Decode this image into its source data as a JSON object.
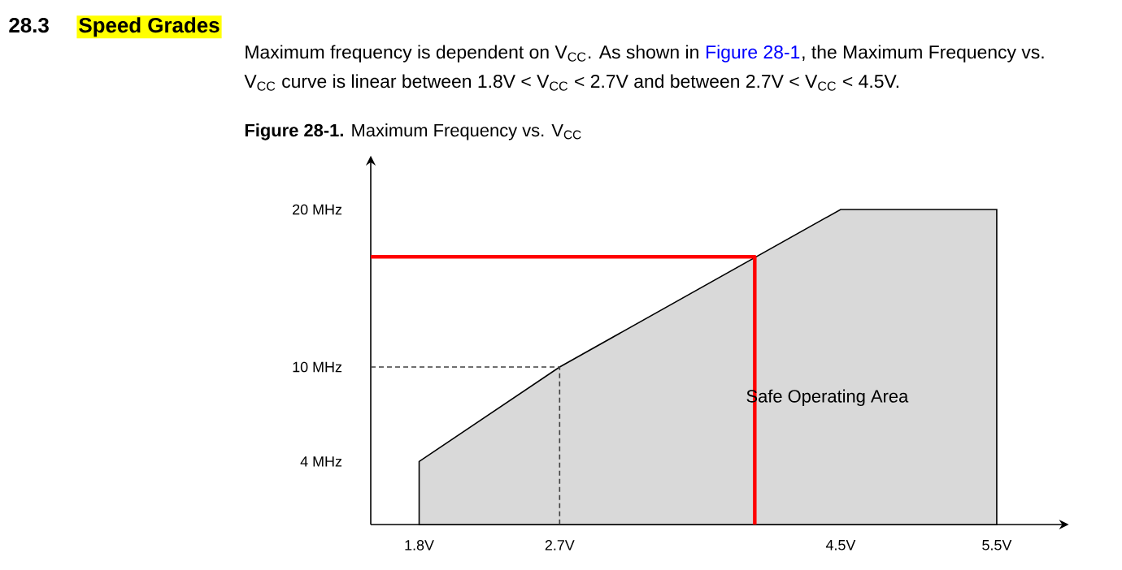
{
  "chart_data": {
    "type": "area",
    "title": "Speed Grades",
    "subtitle": "**Figure 28-1.** Maximum Frequency vs. V$_{CC}$",
    "annotations": [
      "28.3",
      "Maximum frequency is dependent on V$_{CC}$. As shown in",
      "Figure 28-1",
      ", the Maximum Frequency vs.",
      "V$_{CC}$ curve is linear between 1.8V < V$_{CC}$ < 2.7V and between 2.7V < V$_{CC}$ < 4.5V.",
      "Safe Operating Area"
    ],
    "xlim": [
      1.49,
      5.92
    ],
    "ylim": [
      0,
      23
    ],
    "xticks": [
      {
        "value": 1.8,
        "label": "1.8V"
      },
      {
        "value": 2.7,
        "label": "2.7V"
      },
      {
        "value": 4.5,
        "label": "4.5V"
      },
      {
        "value": 5.5,
        "label": "5.5V"
      }
    ],
    "yticks": [
      {
        "value": 4,
        "label": "4 MHz"
      },
      {
        "value": 10,
        "label": "10 MHz"
      },
      {
        "value": 20,
        "label": "20 MHz"
      }
    ],
    "series": [
      {
        "color": "#d9d9d9",
        "x": [
          1.8,
          2.7,
          4.5,
          5.5
        ],
        "values": [
          4,
          10,
          20,
          20
        ]
      },
      {
        "type": "line",
        "color": "#404040",
        "line_style": "dashed",
        "x": [
          1.49,
          2.7,
          2.7
        ],
        "values": [
          10,
          10,
          0
        ]
      },
      {
        "type": "line",
        "color": "#ff0000",
        "line_style": "solid",
        "x": [
          1.49,
          3.95,
          3.95
        ],
        "values": [
          17,
          17,
          0
        ]
      }
    ]
  }
}
